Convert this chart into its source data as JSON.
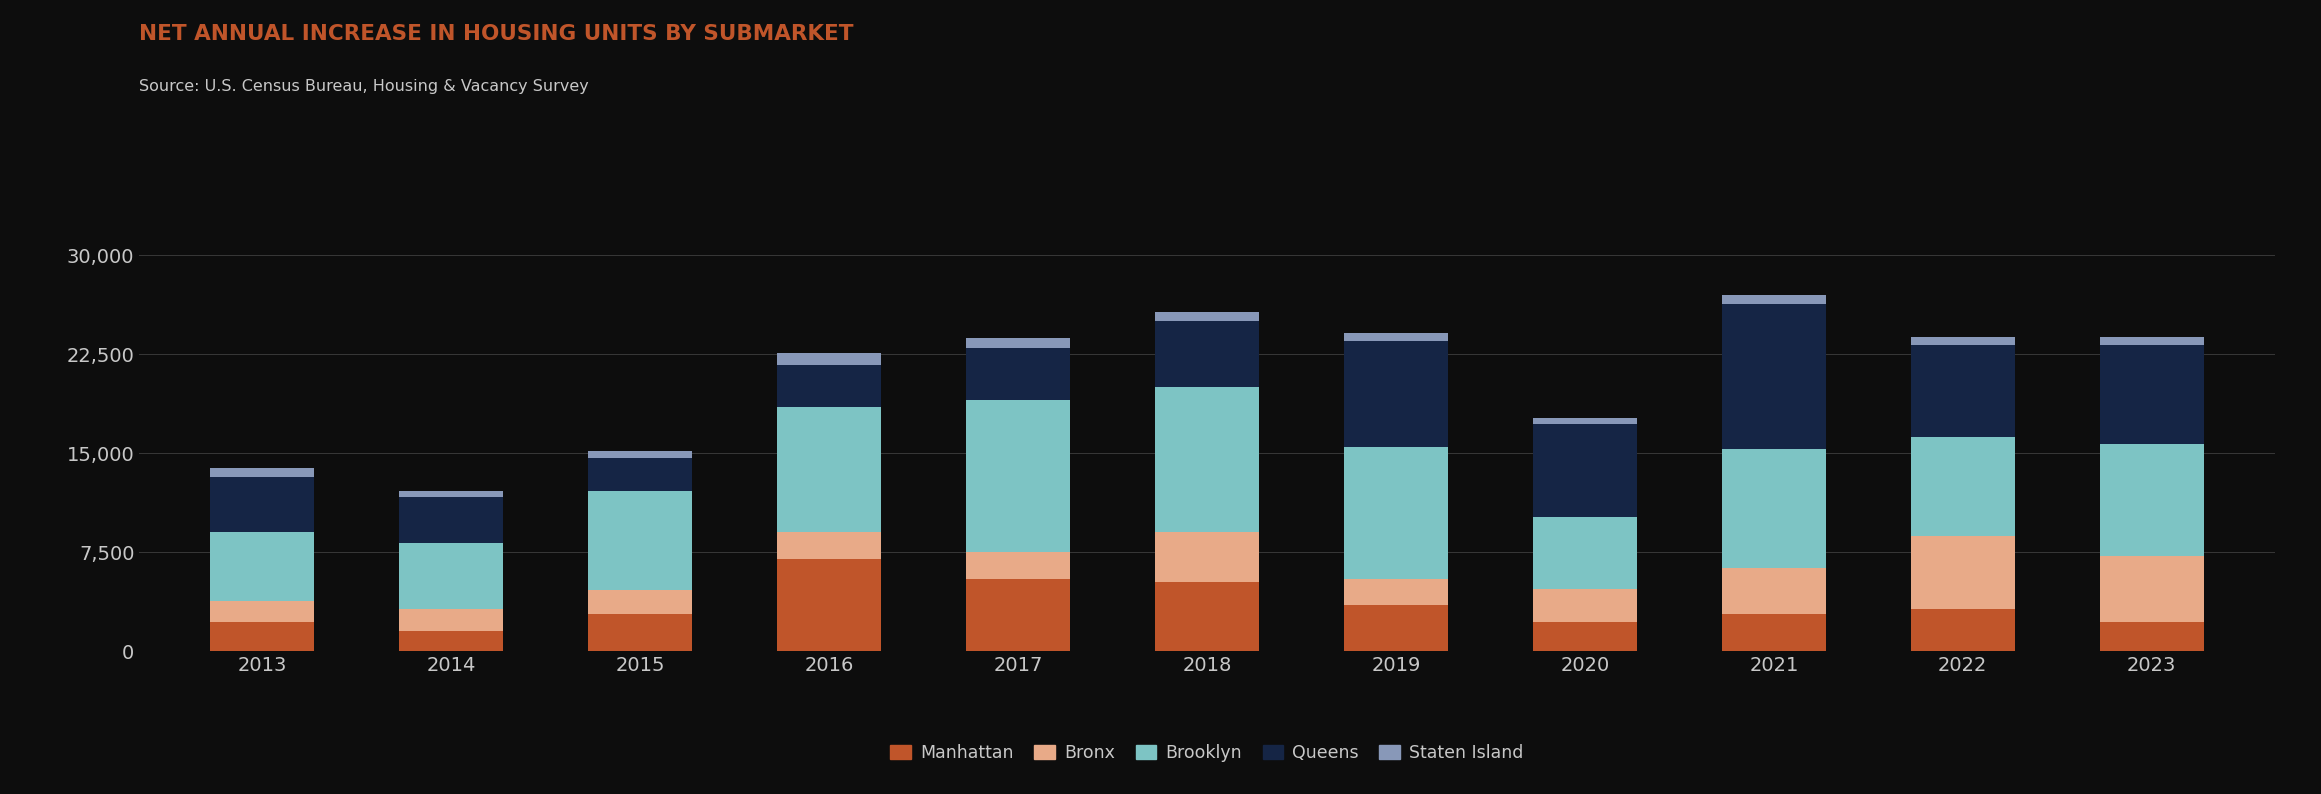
{
  "title": "NET ANNUAL INCREASE IN HOUSING UNITS BY SUBMARKET",
  "subtitle": "Source: U.S. Census Bureau, Housing & Vacancy Survey",
  "years": [
    2013,
    2014,
    2015,
    2016,
    2017,
    2018,
    2019,
    2020,
    2021,
    2022,
    2023
  ],
  "segments": {
    "Manhattan": [
      2200,
      1500,
      2800,
      7000,
      5500,
      5200,
      3500,
      2200,
      2800,
      3200,
      2200
    ],
    "Bronx": [
      1600,
      1700,
      1800,
      2000,
      2000,
      3800,
      2000,
      2500,
      3500,
      5500,
      5000
    ],
    "Brooklyn": [
      5200,
      5000,
      7500,
      9500,
      11500,
      11000,
      10000,
      5500,
      9000,
      7500,
      8500
    ],
    "Queens": [
      4200,
      3500,
      2500,
      3200,
      4000,
      5000,
      8000,
      7000,
      11000,
      7000,
      7500
    ],
    "Staten Island": [
      700,
      400,
      600,
      900,
      700,
      700,
      600,
      500,
      700,
      600,
      600
    ]
  },
  "colors": {
    "Manhattan": "#c0552a",
    "Bronx": "#e8aa88",
    "Brooklyn": "#7dc4c4",
    "Queens": "#152545",
    "Staten Island": "#8898b8"
  },
  "ylim": [
    0,
    32500
  ],
  "yticks": [
    0,
    7500,
    15000,
    22500,
    30000
  ],
  "ytick_labels": [
    "0",
    "7,500",
    "15,000",
    "22,500",
    "30,000"
  ],
  "background_color": "#0d0d0d",
  "text_color": "#c8c8c8",
  "title_color": "#c0552a",
  "grid_color": "#383838",
  "bar_width": 0.55,
  "figsize": [
    23.21,
    7.94
  ],
  "dpi": 100,
  "legend_labels": [
    "Manhattan",
    "Bronx",
    "Brooklyn",
    "Queens",
    "Staten Island"
  ]
}
